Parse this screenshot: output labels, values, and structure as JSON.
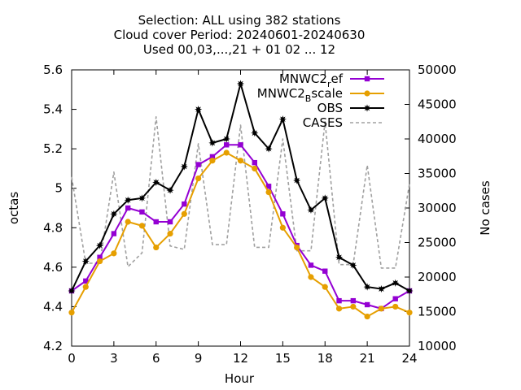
{
  "chart_data": {
    "type": "line",
    "title_lines": [
      "Selection: ALL using   382 stations",
      "Cloud cover   Period: 20240601-20240630",
      "Used 00,03,...,21 + 01 02 ... 12"
    ],
    "xlabel": "Hour",
    "ylabel": "octas",
    "y2label": "No cases",
    "xlim": [
      0,
      24
    ],
    "ylim": [
      4.2,
      5.6
    ],
    "y2lim": [
      10000,
      50000
    ],
    "xticks": [
      "0",
      "3",
      "6",
      "9",
      "12",
      "15",
      "18",
      "21",
      "24"
    ],
    "yticks": [
      "4.2",
      "4.4",
      "4.6",
      "4.8",
      "5",
      "5.2",
      "5.4",
      "5.6"
    ],
    "y2ticks": [
      "10000",
      "15000",
      "20000",
      "25000",
      "30000",
      "35000",
      "40000",
      "45000",
      "50000"
    ],
    "grid": false,
    "legend_position": "top-right",
    "x": [
      0,
      1,
      2,
      3,
      4,
      5,
      6,
      7,
      8,
      9,
      10,
      11,
      12,
      13,
      14,
      15,
      16,
      17,
      18,
      19,
      20,
      21,
      22,
      23,
      24
    ],
    "series": [
      {
        "name": "MNWC2_ref",
        "legend_base": "MNWC2",
        "legend_sub": "r",
        "legend_tail": "ef",
        "color": "#9400d3",
        "marker": "square",
        "axis": "y",
        "dash": false,
        "values": [
          4.48,
          4.53,
          4.65,
          4.77,
          4.9,
          4.88,
          4.83,
          4.83,
          4.92,
          5.12,
          5.16,
          5.22,
          5.22,
          5.13,
          5.01,
          4.87,
          4.71,
          4.61,
          4.58,
          4.43,
          4.43,
          4.41,
          4.39,
          4.44,
          4.48
        ]
      },
      {
        "name": "MNWC2_Bscale",
        "legend_base": "MNWC2",
        "legend_sub": "B",
        "legend_tail": "scale",
        "color": "#e69f00",
        "marker": "circle",
        "axis": "y",
        "dash": false,
        "values": [
          4.37,
          4.5,
          4.63,
          4.67,
          4.83,
          4.81,
          4.7,
          4.77,
          4.87,
          5.05,
          5.14,
          5.18,
          5.14,
          5.1,
          4.98,
          4.8,
          4.7,
          4.55,
          4.5,
          4.39,
          4.4,
          4.35,
          4.39,
          4.4,
          4.37
        ]
      },
      {
        "name": "OBS",
        "legend_base": "OBS",
        "legend_sub": "",
        "legend_tail": "",
        "color": "#000000",
        "marker": "star",
        "axis": "y",
        "dash": false,
        "values": [
          4.48,
          4.63,
          4.71,
          4.87,
          4.94,
          4.95,
          5.03,
          4.99,
          5.11,
          5.4,
          5.23,
          5.25,
          5.53,
          5.28,
          5.2,
          5.35,
          5.04,
          4.89,
          4.95,
          4.65,
          4.61,
          4.5,
          4.49,
          4.52,
          4.48
        ]
      },
      {
        "name": "CASES",
        "legend_base": "CASES",
        "legend_sub": "",
        "legend_tail": "",
        "color": "#a0a0a0",
        "marker": "none",
        "axis": "y2",
        "dash": true,
        "values": [
          34500,
          22000,
          22000,
          35200,
          21500,
          23500,
          43200,
          24500,
          24000,
          39300,
          24700,
          24700,
          42000,
          24300,
          24300,
          40000,
          23800,
          23800,
          42500,
          21800,
          21800,
          36200,
          21300,
          21300,
          33500
        ]
      }
    ]
  }
}
